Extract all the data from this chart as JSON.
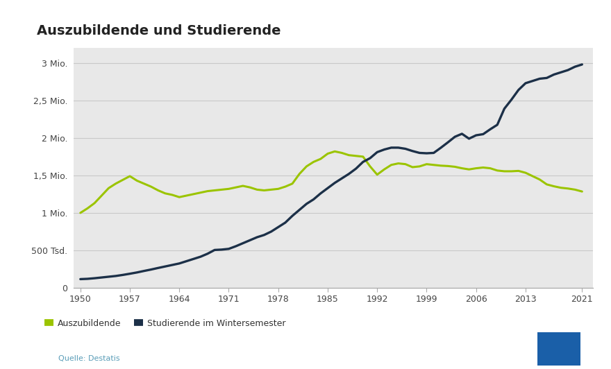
{
  "title": "Auszubildende und Studierende",
  "source": "Quelle: Destatis",
  "legend": [
    "Auszubildende",
    "Studierende im Wintersemester"
  ],
  "colors": {
    "auszubildende": "#9bc400",
    "studierende": "#1c3048"
  },
  "outer_bg": "#ffffff",
  "plot_bg": "#e8e8e8",
  "yticks": [
    0,
    500000,
    1000000,
    1500000,
    2000000,
    2500000,
    3000000
  ],
  "ytick_labels": [
    "0",
    "500 Tsd.",
    "1 Mio.",
    "1,5 Mio.",
    "2 Mio.",
    "2,5 Mio.",
    "3 Mio."
  ],
  "xticks": [
    1950,
    1957,
    1964,
    1971,
    1978,
    1985,
    1992,
    1999,
    2006,
    2013,
    2021
  ],
  "auszubildende_years": [
    1950,
    1951,
    1952,
    1953,
    1954,
    1955,
    1956,
    1957,
    1958,
    1959,
    1960,
    1961,
    1962,
    1963,
    1964,
    1965,
    1966,
    1967,
    1968,
    1969,
    1970,
    1971,
    1972,
    1973,
    1974,
    1975,
    1976,
    1977,
    1978,
    1979,
    1980,
    1981,
    1982,
    1983,
    1984,
    1985,
    1986,
    1987,
    1988,
    1989,
    1990,
    1991,
    1992,
    1993,
    1994,
    1995,
    1996,
    1997,
    1998,
    1999,
    2000,
    2001,
    2002,
    2003,
    2004,
    2005,
    2006,
    2007,
    2008,
    2009,
    2010,
    2011,
    2012,
    2013,
    2014,
    2015,
    2016,
    2017,
    2018,
    2019,
    2020,
    2021
  ],
  "auszubildende_values": [
    1000000,
    1060000,
    1130000,
    1230000,
    1330000,
    1390000,
    1440000,
    1490000,
    1430000,
    1390000,
    1350000,
    1300000,
    1260000,
    1240000,
    1210000,
    1230000,
    1250000,
    1270000,
    1290000,
    1300000,
    1310000,
    1320000,
    1340000,
    1360000,
    1340000,
    1310000,
    1300000,
    1310000,
    1320000,
    1350000,
    1390000,
    1520000,
    1620000,
    1680000,
    1720000,
    1790000,
    1820000,
    1800000,
    1770000,
    1760000,
    1750000,
    1620000,
    1510000,
    1580000,
    1640000,
    1660000,
    1650000,
    1610000,
    1620000,
    1650000,
    1640000,
    1630000,
    1625000,
    1615000,
    1595000,
    1580000,
    1595000,
    1605000,
    1595000,
    1565000,
    1555000,
    1555000,
    1560000,
    1535000,
    1490000,
    1445000,
    1380000,
    1355000,
    1335000,
    1325000,
    1310000,
    1285000
  ],
  "studierende_years": [
    1950,
    1951,
    1952,
    1953,
    1954,
    1955,
    1956,
    1957,
    1958,
    1959,
    1960,
    1961,
    1962,
    1963,
    1964,
    1965,
    1966,
    1967,
    1968,
    1969,
    1970,
    1971,
    1972,
    1973,
    1974,
    1975,
    1976,
    1977,
    1978,
    1979,
    1980,
    1981,
    1982,
    1983,
    1984,
    1985,
    1986,
    1987,
    1988,
    1989,
    1990,
    1991,
    1992,
    1993,
    1994,
    1995,
    1996,
    1997,
    1998,
    1999,
    2000,
    2001,
    2002,
    2003,
    2004,
    2005,
    2006,
    2007,
    2008,
    2009,
    2010,
    2011,
    2012,
    2013,
    2014,
    2015,
    2016,
    2017,
    2018,
    2019,
    2020,
    2021
  ],
  "studierende_values": [
    116000,
    120000,
    128000,
    138000,
    148000,
    158000,
    172000,
    188000,
    205000,
    225000,
    244000,
    265000,
    285000,
    305000,
    325000,
    355000,
    385000,
    415000,
    455000,
    505000,
    510000,
    520000,
    555000,
    595000,
    635000,
    675000,
    705000,
    750000,
    810000,
    870000,
    960000,
    1040000,
    1120000,
    1180000,
    1260000,
    1330000,
    1400000,
    1460000,
    1520000,
    1590000,
    1680000,
    1730000,
    1810000,
    1845000,
    1870000,
    1870000,
    1855000,
    1825000,
    1800000,
    1795000,
    1800000,
    1868000,
    1940000,
    2015000,
    2055000,
    1990000,
    2035000,
    2050000,
    2115000,
    2175000,
    2390000,
    2510000,
    2640000,
    2730000,
    2760000,
    2790000,
    2800000,
    2845000,
    2875000,
    2905000,
    2950000,
    2980000
  ]
}
